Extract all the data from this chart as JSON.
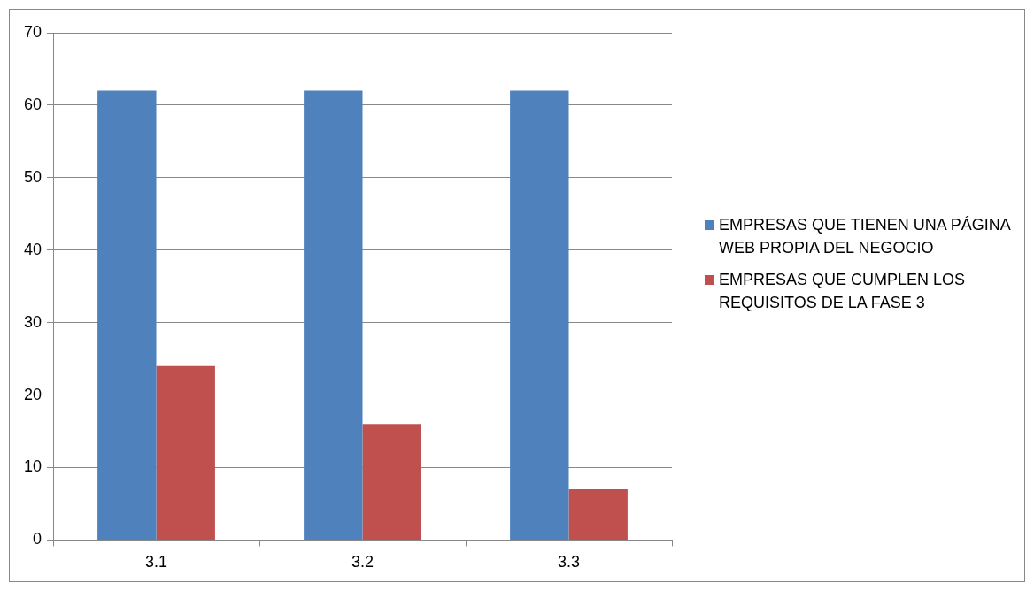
{
  "chart_data": {
    "type": "bar",
    "categories": [
      "3.1",
      "3.2",
      "3.3"
    ],
    "series": [
      {
        "name": "EMPRESAS QUE TIENEN UNA PÁGINA WEB PROPIA DEL NEGOCIO",
        "color": "#4f81bd",
        "values": [
          62,
          62,
          62
        ]
      },
      {
        "name": "EMPRESAS QUE CUMPLEN LOS REQUISITOS DE LA FASE 3",
        "color": "#c0504d",
        "values": [
          24,
          16,
          7
        ]
      }
    ],
    "ylim": [
      0,
      70
    ],
    "yticks": [
      0,
      10,
      20,
      30,
      40,
      50,
      60,
      70
    ],
    "grid": "y",
    "legend": "right"
  }
}
